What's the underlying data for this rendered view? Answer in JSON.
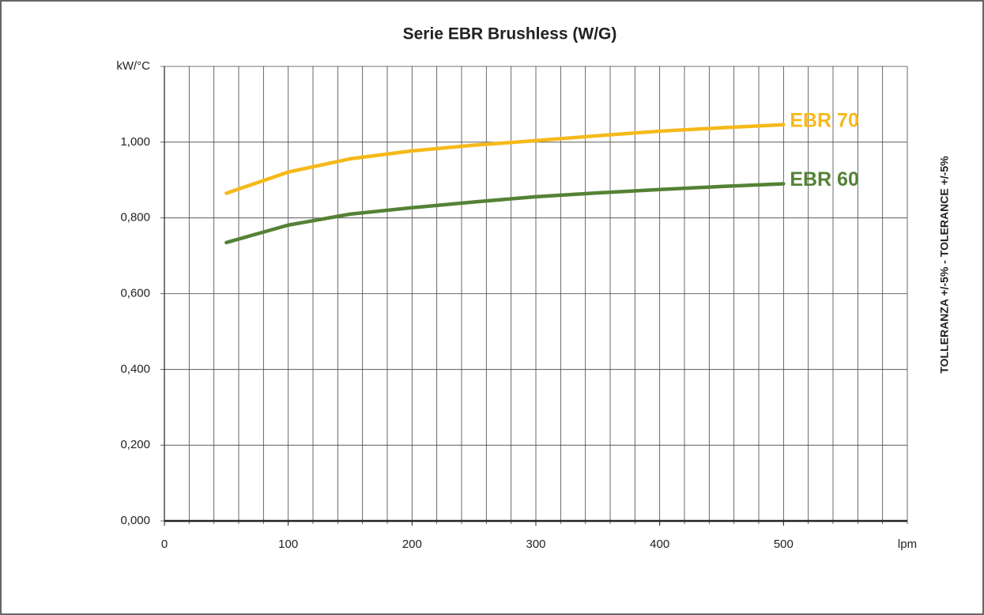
{
  "chart_data": {
    "type": "line",
    "title": "Serie EBR Brushless (W/G)",
    "x_label": "lpm",
    "y_label": "kW/°C",
    "side_note": "TOLLERANZA +/-5% - TOLERANCE +/-5%",
    "x": [
      50,
      100,
      150,
      200,
      250,
      300,
      350,
      400,
      450,
      500
    ],
    "series": [
      {
        "name": "EBR 70",
        "color": "#f5b91a",
        "values": [
          0.865,
          0.921,
          0.956,
          0.977,
          0.992,
          1.004,
          1.017,
          1.029,
          1.038,
          1.046
        ]
      },
      {
        "name": "EBR 60",
        "color": "#548235",
        "values": [
          0.735,
          0.781,
          0.81,
          0.827,
          0.842,
          0.856,
          0.866,
          0.875,
          0.883,
          0.89
        ]
      }
    ],
    "xlim": [
      0,
      600
    ],
    "xticks": [
      0,
      100,
      200,
      300,
      400,
      500
    ],
    "xgrid": [
      0,
      20,
      40,
      60,
      80,
      100,
      120,
      140,
      160,
      180,
      200,
      220,
      240,
      260,
      280,
      300,
      320,
      340,
      360,
      380,
      400,
      420,
      440,
      460,
      480,
      500,
      520,
      540,
      560,
      580,
      600
    ],
    "ylim": [
      0,
      1.2
    ],
    "yticks": [
      {
        "value": 0,
        "label": "0,000"
      },
      {
        "value": 0.2,
        "label": "0,200"
      },
      {
        "value": 0.4,
        "label": "0,400"
      },
      {
        "value": 0.6,
        "label": "0,600"
      },
      {
        "value": 0.8,
        "label": "0,800"
      },
      {
        "value": 1.0,
        "label": "1,000"
      },
      1.2
    ],
    "grid": true
  }
}
